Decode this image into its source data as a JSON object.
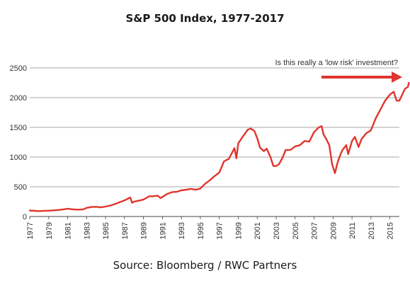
{
  "chart_data": {
    "type": "line",
    "title": "S&P 500 Index, 1977-2017",
    "source": "Source: Bloomberg / RWC Partners",
    "annotation": "Is this really a 'low risk' investment?",
    "xlim": [
      1977,
      2016
    ],
    "ylim": [
      0,
      2500
    ],
    "ytick_values": [
      0,
      500,
      1000,
      1500,
      2000,
      2500
    ],
    "xtick_values": [
      1977,
      1979,
      1981,
      1983,
      1985,
      1987,
      1989,
      1991,
      1993,
      1995,
      1997,
      1999,
      2001,
      2003,
      2005,
      2007,
      2009,
      2011,
      2013,
      2015
    ],
    "grid": true,
    "line_color": "#e0352e",
    "series": [
      {
        "x": [
          1977.0,
          1977.5,
          1978.0,
          1978.5,
          1979.0,
          1979.5,
          1980.0,
          1980.5,
          1981.0,
          1981.5,
          1982.0,
          1982.6,
          1983.0,
          1983.5,
          1984.0,
          1984.5,
          1985.0,
          1985.5,
          1986.0,
          1986.5,
          1987.0,
          1987.6,
          1987.8,
          1988.0,
          1988.5,
          1989.0,
          1989.6,
          1990.0,
          1990.5,
          1990.8,
          1991.0,
          1991.5,
          1992.0,
          1992.5,
          1993.0,
          1993.5,
          1994.0,
          1994.5,
          1995.0,
          1995.5,
          1996.0,
          1996.5,
          1997.0,
          1997.5,
          1998.0,
          1998.6,
          1998.8,
          1999.0,
          1999.5,
          2000.0,
          2000.3,
          2000.7,
          2001.0,
          2001.3,
          2001.7,
          2002.0,
          2002.4,
          2002.7,
          2003.0,
          2003.3,
          2003.7,
          2004.0,
          2004.5,
          2005.0,
          2005.5,
          2006.0,
          2006.5,
          2007.0,
          2007.5,
          2007.8,
          2008.0,
          2008.3,
          2008.6,
          2008.9,
          2009.2,
          2009.5,
          2009.8,
          2010.0,
          2010.4,
          2010.6,
          2011.0,
          2011.3,
          2011.7,
          2012.0,
          2012.5,
          2013.0,
          2013.5,
          2014.0,
          2014.5,
          2015.0,
          2015.4,
          2015.7,
          2016.0,
          2016.3,
          2016.6,
          2016.9,
          2017.0
        ],
        "y": [
          100,
          95,
          90,
          96,
          98,
          103,
          110,
          118,
          130,
          122,
          115,
          118,
          145,
          160,
          163,
          154,
          167,
          185,
          210,
          240,
          270,
          320,
          230,
          250,
          265,
          285,
          340,
          340,
          350,
          310,
          330,
          380,
          410,
          415,
          440,
          450,
          465,
          450,
          470,
          550,
          610,
          680,
          740,
          930,
          970,
          1150,
          980,
          1230,
          1350,
          1460,
          1480,
          1440,
          1320,
          1160,
          1100,
          1140,
          1000,
          850,
          850,
          880,
          1000,
          1120,
          1120,
          1180,
          1200,
          1270,
          1260,
          1420,
          1500,
          1520,
          1380,
          1300,
          1200,
          880,
          730,
          920,
          1050,
          1120,
          1200,
          1050,
          1270,
          1340,
          1170,
          1300,
          1400,
          1450,
          1650,
          1800,
          1950,
          2050,
          2100,
          1950,
          1950,
          2050,
          2150,
          2180,
          2250
        ]
      }
    ]
  }
}
